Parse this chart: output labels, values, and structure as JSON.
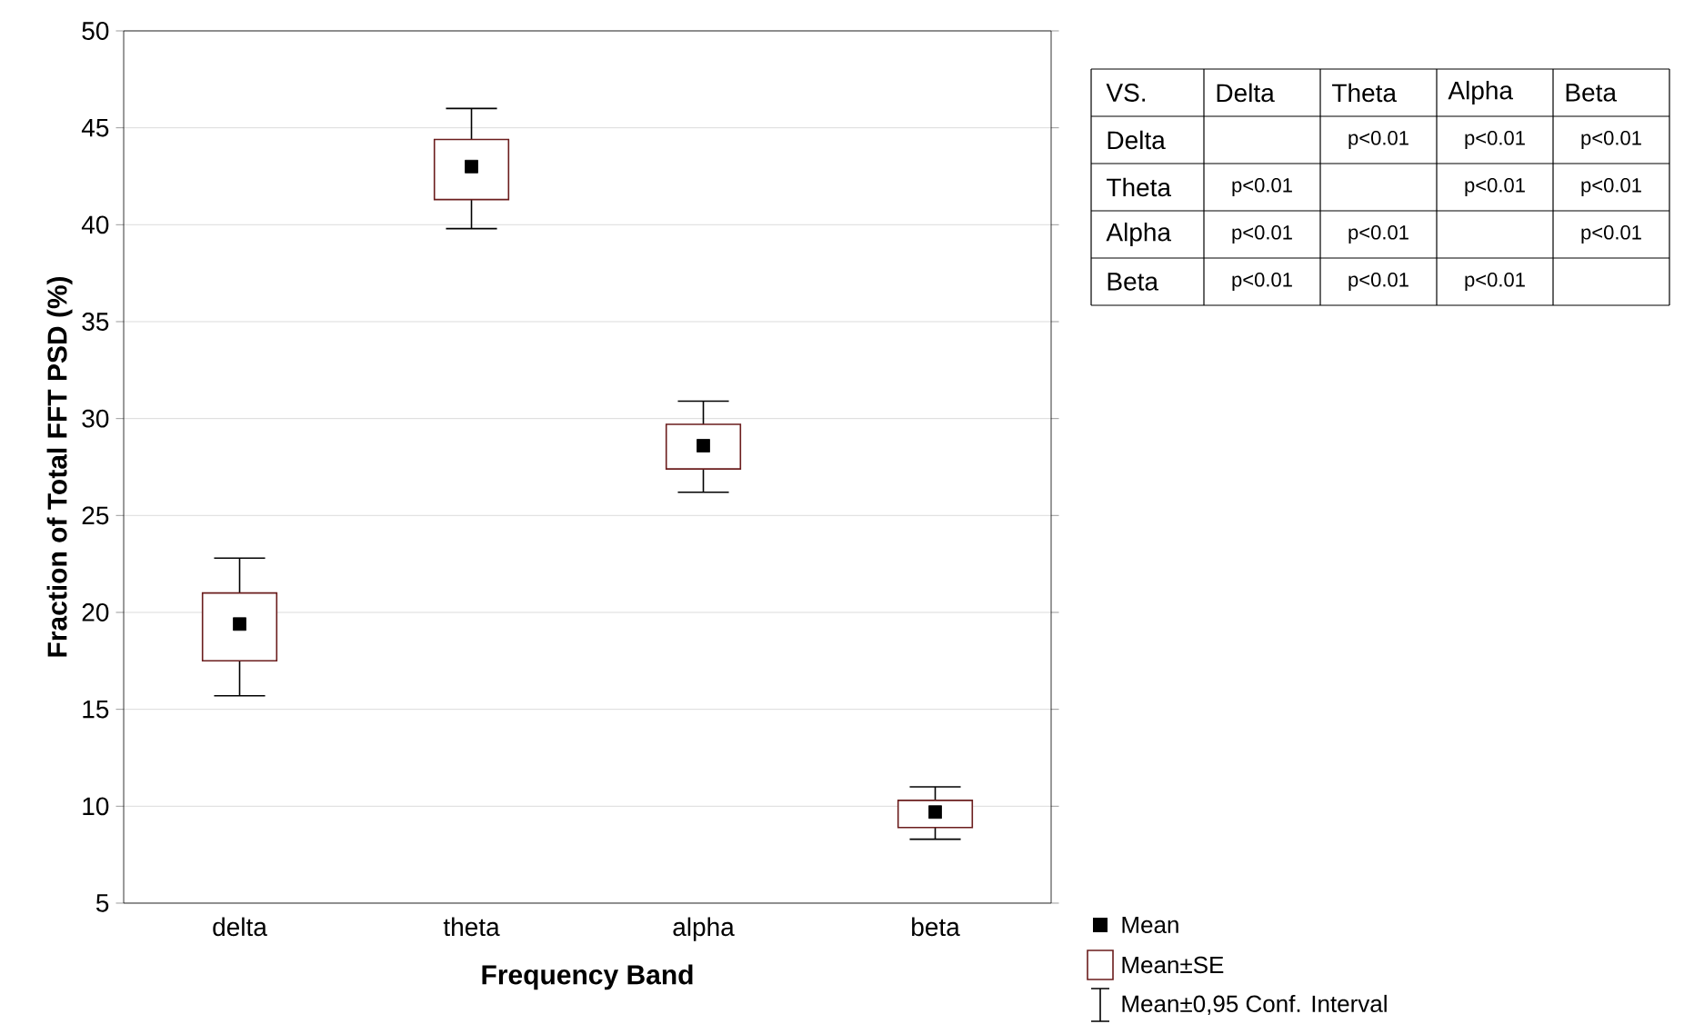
{
  "chart_data": [
    {
      "type": "box",
      "xlabel": "Frequency Band",
      "ylabel": "Fraction of Total FFT PSD (%)",
      "categories": [
        "delta",
        "theta",
        "alpha",
        "beta"
      ],
      "boxes": [
        {
          "low": 15.7,
          "q1": 17.5,
          "median": 19.4,
          "q3": 21.0,
          "high": 22.8
        },
        {
          "low": 39.8,
          "q1": 41.3,
          "median": 43.0,
          "q3": 44.4,
          "high": 46.0
        },
        {
          "low": 26.2,
          "q1": 27.4,
          "median": 28.6,
          "q3": 29.7,
          "high": 30.9
        },
        {
          "low": 8.3,
          "q1": 8.9,
          "median": 9.7,
          "q3": 10.3,
          "high": 11.0
        }
      ],
      "color": "#6b1d1d",
      "marker": "square",
      "ylim": [
        5,
        50
      ],
      "yticks": [
        5,
        10,
        15,
        20,
        25,
        30,
        35,
        40,
        45,
        50
      ],
      "grid": "y",
      "annotations": [
        "Mean",
        "Mean±SE",
        "Mean±0,95 Conf. Interval"
      ]
    },
    {
      "type": "other",
      "title": "VS.",
      "categories": [
        "Delta",
        "Theta",
        "Alpha",
        "Beta"
      ],
      "y_categories": [
        "Delta",
        "Theta",
        "Alpha",
        "Beta"
      ],
      "cell_labels": [
        [
          null,
          "p<0.01",
          "p<0.01",
          "p<0.01"
        ],
        [
          "p<0.01",
          null,
          "p<0.01",
          "p<0.01"
        ],
        [
          "p<0.01",
          "p<0.01",
          null,
          "p<0.01"
        ],
        [
          "p<0.01",
          "p<0.01",
          "p<0.01",
          null
        ]
      ]
    }
  ]
}
